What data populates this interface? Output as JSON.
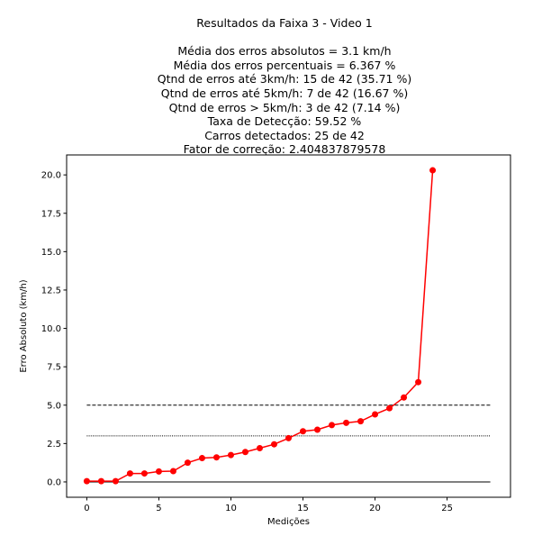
{
  "chart_data": {
    "type": "line",
    "title": "Resultados da Faixa 3 - Video 1",
    "subtitle_lines": [
      "Média dos erros absolutos =  3.1 km/h",
      "Média dos erros percentuais = 6.367 %",
      "Qtnd de erros até 3km/h: 15 de 42 (35.71 %)",
      "Qtnd de erros até 5km/h: 7 de 42 (16.67 %)",
      "Qtnd de erros > 5km/h: 3 de 42 (7.14 %)",
      "Taxa de Detecção: 59.52 %",
      "Carros detectados: 25 de 42",
      "Fator de correção: 2.404837879578"
    ],
    "xlabel": "Medições",
    "ylabel": "Erro Absoluto (km/h)",
    "xlim": [
      -1.4,
      29.4
    ],
    "ylim": [
      -1.0,
      21.3
    ],
    "xticks": [
      0,
      5,
      10,
      15,
      20,
      25
    ],
    "xtick_labels": [
      "0",
      "5",
      "10",
      "15",
      "20",
      "25"
    ],
    "yticks": [
      0.0,
      2.5,
      5.0,
      7.5,
      10.0,
      12.5,
      15.0,
      17.5,
      20.0
    ],
    "ytick_labels": [
      "0.0",
      "2.5",
      "5.0",
      "7.5",
      "10.0",
      "12.5",
      "15.0",
      "17.5",
      "20.0"
    ],
    "grid": false,
    "series": [
      {
        "color": "#ff0000",
        "marker": "circle",
        "x": [
          0,
          1,
          2,
          3,
          4,
          5,
          6,
          7,
          8,
          9,
          10,
          11,
          12,
          13,
          14,
          15,
          16,
          17,
          18,
          19,
          20,
          21,
          22,
          23,
          24
        ],
        "values": [
          0.05,
          0.05,
          0.05,
          0.55,
          0.55,
          0.68,
          0.7,
          1.25,
          1.55,
          1.6,
          1.75,
          1.95,
          2.2,
          2.45,
          2.85,
          3.3,
          3.4,
          3.7,
          3.85,
          3.95,
          4.4,
          4.8,
          5.5,
          6.5,
          20.3
        ]
      }
    ],
    "reference_lines": [
      {
        "y": 5.0,
        "style": "dashed",
        "color": "#000000",
        "x": [
          0,
          28
        ]
      },
      {
        "y": 3.0,
        "style": "dotted",
        "color": "#000000",
        "x": [
          0,
          28
        ]
      },
      {
        "y": 0.0,
        "style": "solid",
        "color": "#000000",
        "x": [
          0,
          28
        ]
      }
    ]
  }
}
